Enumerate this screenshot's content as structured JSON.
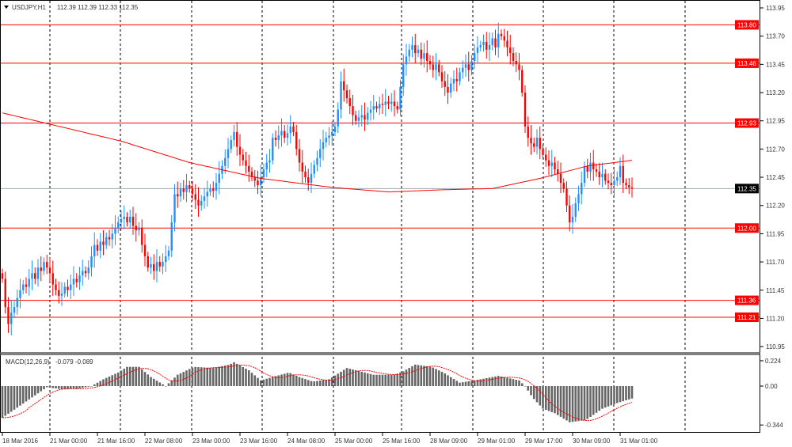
{
  "header": {
    "symbol_label": "USDJPY,H1",
    "ohlc_label": "112.39 112.39 112.33 112.35"
  },
  "colors": {
    "bull": "#1e90ff",
    "bear": "#ff0000",
    "doji": "#000000",
    "level": "#ff0000",
    "bid": "#a0a8b0",
    "ma": "#ff0000",
    "macd_hist": "#666666",
    "macd_signal": "#ff0000"
  },
  "chart_data": [
    {
      "type": "candlestick",
      "title": "USDJPY,H1",
      "ylim": [
        110.9,
        114.0
      ],
      "y_ticks": [
        "113.95",
        "113.70",
        "113.45",
        "113.20",
        "112.95",
        "112.70",
        "112.45",
        "112.20",
        "111.95",
        "111.70",
        "111.45",
        "111.20",
        "110.95"
      ],
      "x_ticks": [
        "18 Mar 2016",
        "21 Mar 00:00",
        "21 Mar 16:00",
        "22 Mar 08:00",
        "23 Mar 00:00",
        "23 Mar 16:00",
        "24 Mar 08:00",
        "25 Mar 00:00",
        "25 Mar 16:00",
        "28 Mar 09:00",
        "29 Mar 01:00",
        "29 Mar 17:00",
        "30 Mar 09:00",
        "31 Mar 01:00"
      ],
      "grid": "vertical dashed daily separators",
      "levels": [
        "113.80",
        "113.46",
        "112.93",
        "112.00",
        "111.36",
        "111.21"
      ],
      "bid": "112.35",
      "close": [
        111.55,
        111.3,
        111.15,
        111.25,
        111.3,
        111.38,
        111.45,
        111.5,
        111.48,
        111.55,
        111.6,
        111.55,
        111.65,
        111.62,
        111.7,
        111.65,
        111.6,
        111.5,
        111.45,
        111.4,
        111.42,
        111.48,
        111.45,
        111.5,
        111.55,
        111.52,
        111.58,
        111.62,
        111.6,
        111.65,
        111.75,
        111.85,
        111.8,
        111.88,
        111.85,
        111.92,
        111.9,
        111.95,
        112.0,
        112.05,
        112.08,
        112.1,
        112.05,
        112.1,
        112.02,
        111.98,
        112.0,
        111.85,
        111.75,
        111.65,
        111.68,
        111.62,
        111.7,
        111.66,
        111.7,
        111.75,
        111.8,
        112.05,
        112.3,
        112.28,
        112.35,
        112.32,
        112.38,
        112.35,
        112.3,
        112.25,
        112.2,
        112.24,
        112.28,
        112.32,
        112.35,
        112.33,
        112.4,
        112.48,
        112.55,
        112.62,
        112.7,
        112.78,
        112.85,
        112.72,
        112.65,
        112.6,
        112.55,
        112.5,
        112.45,
        112.42,
        112.38,
        112.45,
        112.52,
        112.58,
        112.6,
        112.8,
        112.78,
        112.82,
        112.86,
        112.8,
        112.84,
        112.9,
        112.85,
        112.7,
        112.58,
        112.5,
        112.45,
        112.4,
        112.48,
        112.56,
        112.62,
        112.7,
        112.76,
        112.8,
        112.82,
        112.85,
        112.9,
        113.05,
        113.3,
        113.22,
        113.15,
        113.08,
        113.0,
        112.95,
        112.98,
        113.0,
        112.96,
        113.02,
        113.05,
        113.08,
        113.06,
        113.1,
        113.09,
        113.12,
        113.1,
        113.12,
        113.08,
        113.05,
        113.25,
        113.45,
        113.52,
        113.58,
        113.62,
        113.55,
        113.58,
        113.5,
        113.55,
        113.48,
        113.45,
        113.4,
        113.45,
        113.38,
        113.3,
        113.25,
        113.2,
        113.28,
        113.32,
        113.3,
        113.38,
        113.42,
        113.45,
        113.4,
        113.48,
        113.55,
        113.6,
        113.62,
        113.65,
        113.58,
        113.62,
        113.68,
        113.6,
        113.72,
        113.7,
        113.66,
        113.6,
        113.55,
        113.48,
        113.45,
        113.4,
        113.2,
        112.9,
        112.8,
        112.75,
        112.72,
        112.8,
        112.7,
        112.65,
        112.6,
        112.55,
        112.58,
        112.52,
        112.48,
        112.4,
        112.35,
        112.2,
        112.05,
        112.1,
        112.22,
        112.3,
        112.4,
        112.55,
        112.5,
        112.58,
        112.52,
        112.5,
        112.45,
        112.48,
        112.42,
        112.4,
        112.38,
        112.42,
        112.45,
        112.55,
        112.4,
        112.38,
        112.36,
        112.35
      ],
      "moving_average": [
        [
          0,
          113.02
        ],
        [
          40,
          112.77
        ],
        [
          63,
          112.58
        ],
        [
          87,
          112.44
        ],
        [
          111,
          112.36
        ],
        [
          130,
          112.32
        ],
        [
          149,
          112.34
        ],
        [
          165,
          112.35
        ],
        [
          181,
          112.44
        ],
        [
          197,
          112.55
        ],
        [
          212,
          112.6
        ]
      ]
    },
    {
      "type": "bar",
      "title": "MACD(12,26,9)",
      "values_label": "-0.079 -0.089",
      "ylim": [
        -0.344,
        0.224
      ],
      "y_ticks": [
        "0.224",
        "0.00",
        "-0.344"
      ],
      "macd": [
        [
          0,
          -0.28
        ],
        [
          4.5,
          -0.2
        ],
        [
          10,
          -0.1
        ],
        [
          15,
          -0.01
        ],
        [
          20.5,
          -0.03
        ],
        [
          26,
          -0.02
        ],
        [
          30,
          0.0
        ],
        [
          34,
          0.06
        ],
        [
          39,
          0.12
        ],
        [
          42,
          0.17
        ],
        [
          46,
          0.17
        ],
        [
          50,
          0.08
        ],
        [
          55,
          0.0
        ],
        [
          59,
          0.1
        ],
        [
          64.5,
          0.17
        ],
        [
          71,
          0.16
        ],
        [
          76.5,
          0.19
        ],
        [
          78,
          0.21
        ],
        [
          83,
          0.14
        ],
        [
          87,
          0.05
        ],
        [
          91,
          0.08
        ],
        [
          96.5,
          0.12
        ],
        [
          100,
          0.08
        ],
        [
          104.5,
          0.04
        ],
        [
          110,
          0.06
        ],
        [
          116,
          0.16
        ],
        [
          125,
          0.1
        ],
        [
          132,
          0.1
        ],
        [
          135,
          0.13
        ],
        [
          139,
          0.19
        ],
        [
          144.5,
          0.17
        ],
        [
          148.5,
          0.12
        ],
        [
          154,
          0.03
        ],
        [
          159,
          0.05
        ],
        [
          167,
          0.09
        ],
        [
          174,
          0.05
        ],
        [
          176,
          0.0
        ],
        [
          178.5,
          -0.1
        ],
        [
          182,
          -0.2
        ],
        [
          186,
          -0.24
        ],
        [
          191,
          -0.32
        ],
        [
          196.5,
          -0.3
        ],
        [
          202,
          -0.2
        ],
        [
          207,
          -0.15
        ],
        [
          212,
          -0.11
        ]
      ]
    }
  ]
}
